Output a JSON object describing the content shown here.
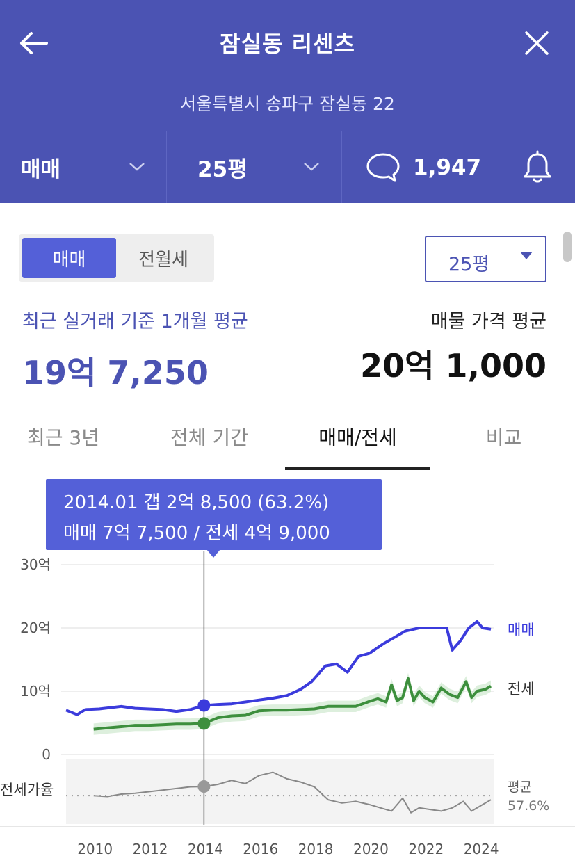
{
  "header": {
    "title": "잠실동 리센츠",
    "address": "서울특별시 송파구 잠실동 22",
    "deal_type": "매매",
    "size": "25평",
    "comment_count": "1,947"
  },
  "toggle": {
    "selected": "매매",
    "other": "전월세"
  },
  "size_select": {
    "value": "25평"
  },
  "summary": {
    "recent_label": "최근 실거래 기준 1개월 평균",
    "recent_value": "19억 7,250",
    "listing_label": "매물 가격 평균",
    "listing_value": "20억 1,000"
  },
  "tabs": [
    {
      "label": "최근 3년"
    },
    {
      "label": "전체 기간"
    },
    {
      "label": "매매/전세"
    },
    {
      "label": "비교"
    }
  ],
  "tooltip": {
    "line1": "2014.01  갭 2억 8,500 (63.2%)",
    "line2": "매매 7억 7,500 / 전세 4억 9,000"
  },
  "colors": {
    "header_bg": "#4b53b3",
    "accent": "#5460d8",
    "sale_line": "#3b3bdc",
    "jeonse_line": "#3d8f3d",
    "jeonse_band": "#cfe8cf",
    "ratio_line": "#888888"
  },
  "chart_data": {
    "type": "line",
    "y_ticks": [
      "30억",
      "20억",
      "10억",
      "0"
    ],
    "ylim": [
      0,
      30
    ],
    "x_ticks": [
      "2010",
      "2012",
      "2014",
      "2016",
      "2018",
      "2020",
      "2022",
      "2024"
    ],
    "series": [
      {
        "name": "매매",
        "x": [
          2009.0,
          2009.4,
          2009.7,
          2010.2,
          2011.0,
          2011.5,
          2012.0,
          2012.5,
          2013.0,
          2013.5,
          2014.0,
          2014.5,
          2015.0,
          2015.5,
          2016.0,
          2016.5,
          2017.0,
          2017.5,
          2017.9,
          2018.4,
          2018.8,
          2019.2,
          2019.6,
          2020.0,
          2020.5,
          2020.9,
          2021.3,
          2021.8,
          2022.3,
          2022.8,
          2023.0,
          2023.3,
          2023.6,
          2023.9,
          2024.1,
          2024.4
        ],
        "values": [
          7.0,
          6.3,
          7.1,
          7.2,
          7.6,
          7.3,
          7.2,
          7.1,
          6.8,
          7.1,
          7.75,
          7.9,
          8.0,
          8.3,
          8.6,
          8.9,
          9.3,
          10.3,
          11.5,
          14.0,
          14.3,
          13.0,
          15.5,
          16.0,
          17.5,
          18.5,
          19.5,
          20.0,
          20.0,
          20.0,
          16.5,
          18.0,
          20.0,
          21.0,
          20.0,
          19.8
        ]
      },
      {
        "name": "전세",
        "x": [
          2010.0,
          2010.5,
          2011.0,
          2011.5,
          2012.0,
          2012.5,
          2013.0,
          2013.5,
          2014.0,
          2014.5,
          2015.0,
          2015.5,
          2016.0,
          2016.5,
          2017.0,
          2017.5,
          2018.0,
          2018.5,
          2019.0,
          2019.5,
          2020.0,
          2020.3,
          2020.6,
          2020.8,
          2021.0,
          2021.2,
          2021.4,
          2021.6,
          2021.8,
          2022.0,
          2022.3,
          2022.6,
          2022.9,
          2023.2,
          2023.5,
          2023.7,
          2023.9,
          2024.2,
          2024.4
        ],
        "values": [
          4.0,
          4.2,
          4.4,
          4.6,
          4.6,
          4.7,
          4.8,
          4.8,
          4.9,
          5.8,
          6.1,
          6.2,
          6.9,
          7.0,
          7.0,
          7.1,
          7.2,
          7.6,
          7.6,
          7.6,
          8.4,
          8.8,
          8.3,
          11.0,
          8.5,
          9.0,
          12.0,
          8.5,
          10.0,
          9.0,
          8.3,
          10.5,
          9.5,
          9.0,
          11.5,
          9.0,
          10.0,
          10.3,
          10.8
        ]
      },
      {
        "name": "전세가율",
        "x": [
          2010.0,
          2010.5,
          2011.0,
          2011.5,
          2012.0,
          2012.5,
          2013.0,
          2013.5,
          2014.0,
          2014.5,
          2015.0,
          2015.5,
          2016.0,
          2016.5,
          2017.0,
          2017.5,
          2018.0,
          2018.5,
          2019.0,
          2019.5,
          2020.0,
          2020.4,
          2020.8,
          2021.2,
          2021.5,
          2021.8,
          2022.2,
          2022.6,
          2023.0,
          2023.4,
          2023.7,
          2024.0,
          2024.4
        ],
        "values": [
          57.5,
          57.0,
          58.5,
          59.0,
          60.0,
          61.0,
          62.0,
          63.0,
          63.2,
          64.5,
          67.0,
          65.0,
          70.0,
          72.0,
          68.0,
          66.0,
          63.0,
          55.0,
          53.0,
          54.0,
          52.0,
          50.0,
          48.0,
          56.0,
          47.0,
          50.0,
          49.0,
          48.0,
          50.0,
          54.0,
          48.0,
          51.0,
          55.0
        ]
      }
    ],
    "highlight": {
      "x": 2014.0,
      "sale": 7.75,
      "jeonse": 4.9,
      "ratio": 63.2
    },
    "ratio_axis_label": "전세가율",
    "avg_label": "평균",
    "avg_value": "57.6%",
    "avg_ratio": 57.6
  }
}
